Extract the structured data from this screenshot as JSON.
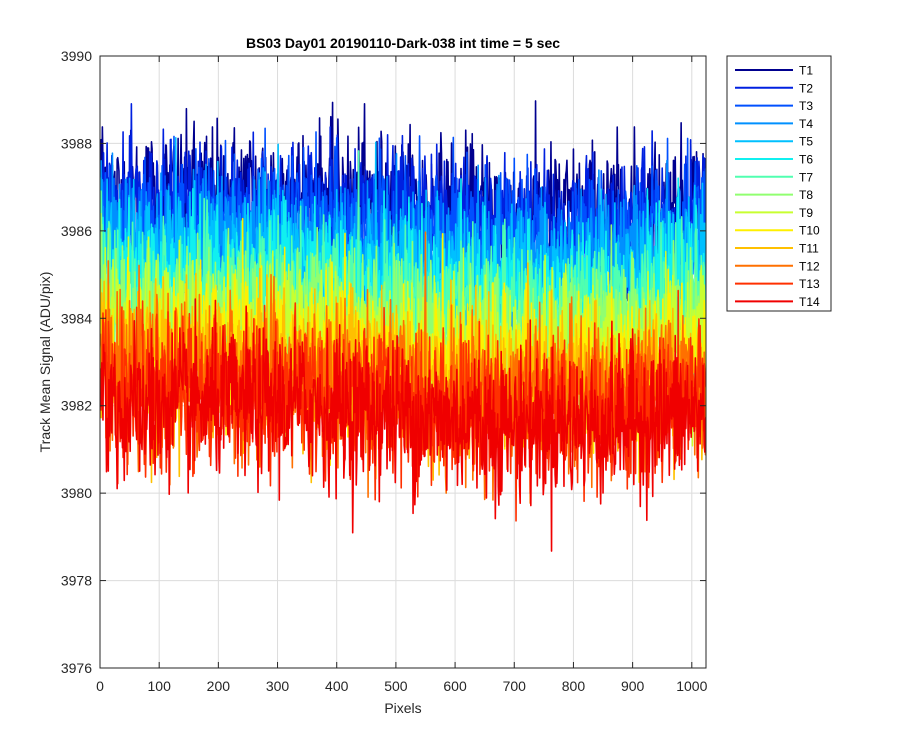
{
  "chart_data": {
    "type": "line",
    "title": "BS03 Day01 20190110-Dark-038 int time = 5 sec",
    "xlabel": "Pixels",
    "ylabel": "Track Mean Signal (ADU/pix)",
    "xlim": [
      0,
      1024
    ],
    "ylim": [
      3976,
      3990
    ],
    "xticks": [
      0,
      100,
      200,
      300,
      400,
      500,
      600,
      700,
      800,
      900,
      1000
    ],
    "yticks": [
      3976,
      3978,
      3980,
      3982,
      3984,
      3986,
      3988,
      3990
    ],
    "grid": true,
    "legend_position": "outside-top-right",
    "series_summary": "Each track is a noisy per-pixel signal over 1024 pixels; approximate mean and noise spread (std) per track, read from the plot.",
    "series": [
      {
        "name": "T1",
        "color": "#00008F",
        "mean": 3986.6,
        "std": 0.8
      },
      {
        "name": "T2",
        "color": "#0020E0",
        "mean": 3986.3,
        "std": 0.8
      },
      {
        "name": "T3",
        "color": "#0050FF",
        "mean": 3985.9,
        "std": 0.8
      },
      {
        "name": "T4",
        "color": "#0090FF",
        "mean": 3985.5,
        "std": 0.8
      },
      {
        "name": "T5",
        "color": "#00C0FF",
        "mean": 3985.1,
        "std": 0.8
      },
      {
        "name": "T6",
        "color": "#10F0F0",
        "mean": 3984.7,
        "std": 0.8
      },
      {
        "name": "T7",
        "color": "#50FFB0",
        "mean": 3984.3,
        "std": 0.8
      },
      {
        "name": "T8",
        "color": "#90FF70",
        "mean": 3983.9,
        "std": 0.8
      },
      {
        "name": "T9",
        "color": "#C8FF30",
        "mean": 3983.5,
        "std": 0.8
      },
      {
        "name": "T10",
        "color": "#FFF000",
        "mean": 3983.0,
        "std": 0.85
      },
      {
        "name": "T11",
        "color": "#FFC000",
        "mean": 3982.7,
        "std": 0.85
      },
      {
        "name": "T12",
        "color": "#FF7000",
        "mean": 3982.4,
        "std": 0.85
      },
      {
        "name": "T13",
        "color": "#FF3000",
        "mean": 3982.1,
        "std": 0.85
      },
      {
        "name": "T14",
        "color": "#F00000",
        "mean": 3981.8,
        "std": 0.85
      }
    ],
    "n_points": 1024
  }
}
